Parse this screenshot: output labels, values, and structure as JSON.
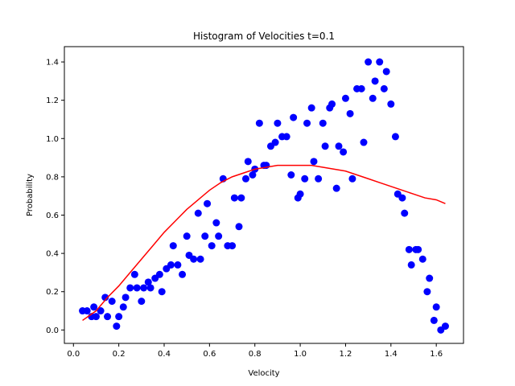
{
  "chart_data": {
    "type": "scatter",
    "title": "Histogram of Velocities t=0.1",
    "xlabel": "Velocity",
    "ylabel": "Probability",
    "xlim": [
      -0.04,
      1.72
    ],
    "ylim": [
      -0.07,
      1.48
    ],
    "x_ticks": [
      0.0,
      0.2,
      0.4,
      0.6,
      0.8,
      1.0,
      1.2,
      1.4,
      1.6
    ],
    "x_tick_labels": [
      "0.0",
      "0.2",
      "0.4",
      "0.6",
      "0.8",
      "1.0",
      "1.2",
      "1.4",
      "1.6"
    ],
    "y_ticks": [
      0.0,
      0.2,
      0.4,
      0.6,
      0.8,
      1.0,
      1.2,
      1.4
    ],
    "y_tick_labels": [
      "0.0",
      "0.2",
      "0.4",
      "0.6",
      "0.8",
      "1.0",
      "1.2",
      "1.4"
    ],
    "grid": false,
    "series": [
      {
        "kind": "scatter",
        "color": "#0000ff",
        "points": [
          [
            0.04,
            0.1
          ],
          [
            0.06,
            0.1
          ],
          [
            0.08,
            0.07
          ],
          [
            0.09,
            0.12
          ],
          [
            0.1,
            0.07
          ],
          [
            0.12,
            0.1
          ],
          [
            0.14,
            0.17
          ],
          [
            0.15,
            0.07
          ],
          [
            0.17,
            0.15
          ],
          [
            0.19,
            0.02
          ],
          [
            0.2,
            0.07
          ],
          [
            0.22,
            0.12
          ],
          [
            0.23,
            0.17
          ],
          [
            0.25,
            0.22
          ],
          [
            0.27,
            0.29
          ],
          [
            0.28,
            0.22
          ],
          [
            0.3,
            0.15
          ],
          [
            0.31,
            0.22
          ],
          [
            0.33,
            0.25
          ],
          [
            0.34,
            0.22
          ],
          [
            0.36,
            0.27
          ],
          [
            0.38,
            0.29
          ],
          [
            0.39,
            0.2
          ],
          [
            0.41,
            0.32
          ],
          [
            0.43,
            0.34
          ],
          [
            0.44,
            0.44
          ],
          [
            0.46,
            0.34
          ],
          [
            0.48,
            0.29
          ],
          [
            0.5,
            0.49
          ],
          [
            0.51,
            0.39
          ],
          [
            0.53,
            0.37
          ],
          [
            0.55,
            0.61
          ],
          [
            0.56,
            0.37
          ],
          [
            0.58,
            0.49
          ],
          [
            0.59,
            0.66
          ],
          [
            0.61,
            0.44
          ],
          [
            0.63,
            0.56
          ],
          [
            0.64,
            0.49
          ],
          [
            0.66,
            0.79
          ],
          [
            0.68,
            0.44
          ],
          [
            0.7,
            0.44
          ],
          [
            0.71,
            0.69
          ],
          [
            0.73,
            0.54
          ],
          [
            0.74,
            0.69
          ],
          [
            0.76,
            0.79
          ],
          [
            0.77,
            0.88
          ],
          [
            0.79,
            0.81
          ],
          [
            0.8,
            0.84
          ],
          [
            0.82,
            1.08
          ],
          [
            0.84,
            0.86
          ],
          [
            0.85,
            0.86
          ],
          [
            0.87,
            0.96
          ],
          [
            0.89,
            0.98
          ],
          [
            0.9,
            1.08
          ],
          [
            0.92,
            1.01
          ],
          [
            0.94,
            1.01
          ],
          [
            0.96,
            0.81
          ],
          [
            0.97,
            1.11
          ],
          [
            0.99,
            0.69
          ],
          [
            1.0,
            0.71
          ],
          [
            1.02,
            0.79
          ],
          [
            1.03,
            1.08
          ],
          [
            1.05,
            1.16
          ],
          [
            1.06,
            0.88
          ],
          [
            1.08,
            0.79
          ],
          [
            1.1,
            1.08
          ],
          [
            1.11,
            0.96
          ],
          [
            1.13,
            1.16
          ],
          [
            1.14,
            1.18
          ],
          [
            1.16,
            0.74
          ],
          [
            1.17,
            0.96
          ],
          [
            1.19,
            0.93
          ],
          [
            1.2,
            1.21
          ],
          [
            1.22,
            1.13
          ],
          [
            1.23,
            0.79
          ],
          [
            1.25,
            1.26
          ],
          [
            1.27,
            1.26
          ],
          [
            1.28,
            0.98
          ],
          [
            1.3,
            1.4
          ],
          [
            1.32,
            1.21
          ],
          [
            1.33,
            1.3
          ],
          [
            1.35,
            1.4
          ],
          [
            1.37,
            1.26
          ],
          [
            1.38,
            1.35
          ],
          [
            1.4,
            1.18
          ],
          [
            1.42,
            1.01
          ],
          [
            1.43,
            0.71
          ],
          [
            1.45,
            0.69
          ],
          [
            1.46,
            0.61
          ],
          [
            1.48,
            0.42
          ],
          [
            1.49,
            0.34
          ],
          [
            1.51,
            0.42
          ],
          [
            1.52,
            0.42
          ],
          [
            1.54,
            0.37
          ],
          [
            1.56,
            0.2
          ],
          [
            1.57,
            0.27
          ],
          [
            1.59,
            0.05
          ],
          [
            1.6,
            0.12
          ],
          [
            1.62,
            0.0
          ],
          [
            1.64,
            0.02
          ]
        ]
      },
      {
        "kind": "line",
        "color": "#ff0000",
        "points": [
          [
            0.04,
            0.05
          ],
          [
            0.1,
            0.1
          ],
          [
            0.15,
            0.17
          ],
          [
            0.2,
            0.23
          ],
          [
            0.25,
            0.3
          ],
          [
            0.3,
            0.37
          ],
          [
            0.35,
            0.44
          ],
          [
            0.4,
            0.51
          ],
          [
            0.45,
            0.57
          ],
          [
            0.5,
            0.63
          ],
          [
            0.55,
            0.68
          ],
          [
            0.6,
            0.73
          ],
          [
            0.65,
            0.77
          ],
          [
            0.7,
            0.8
          ],
          [
            0.75,
            0.82
          ],
          [
            0.8,
            0.84
          ],
          [
            0.85,
            0.85
          ],
          [
            0.9,
            0.86
          ],
          [
            0.95,
            0.86
          ],
          [
            1.0,
            0.86
          ],
          [
            1.05,
            0.86
          ],
          [
            1.1,
            0.85
          ],
          [
            1.15,
            0.84
          ],
          [
            1.2,
            0.83
          ],
          [
            1.25,
            0.81
          ],
          [
            1.3,
            0.79
          ],
          [
            1.35,
            0.77
          ],
          [
            1.4,
            0.75
          ],
          [
            1.45,
            0.73
          ],
          [
            1.5,
            0.71
          ],
          [
            1.55,
            0.69
          ],
          [
            1.6,
            0.68
          ],
          [
            1.64,
            0.66
          ]
        ]
      }
    ]
  }
}
